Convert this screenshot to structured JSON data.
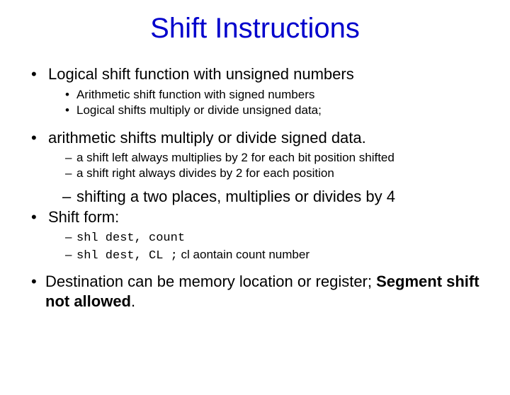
{
  "title": "Shift Instructions",
  "lines": {
    "l1": "Logical shift function with unsigned numbers",
    "l2": "Arithmetic shift function with signed numbers",
    "l3": "Logical shifts multiply or divide unsigned data;",
    "l4": "arithmetic shifts multiply or divide signed data.",
    "l5": "a shift left always multiplies by 2 for each bit position shifted",
    "l6": "a shift right always divides by 2 for each position",
    "l7": "shifting a two places, multiplies or divides by 4",
    "l8": "Shift form:",
    "l9a": " shl dest, count",
    "l9b_mono": "shl dest, CL  ;",
    "l9b_rest": " cl aontain count number",
    "l10a": "Destination can be memory location or register; ",
    "l10b": "Segment shift not allowed",
    "l10c": "."
  },
  "colors": {
    "title": "#0000cc",
    "text": "#000000",
    "background": "#ffffff"
  }
}
